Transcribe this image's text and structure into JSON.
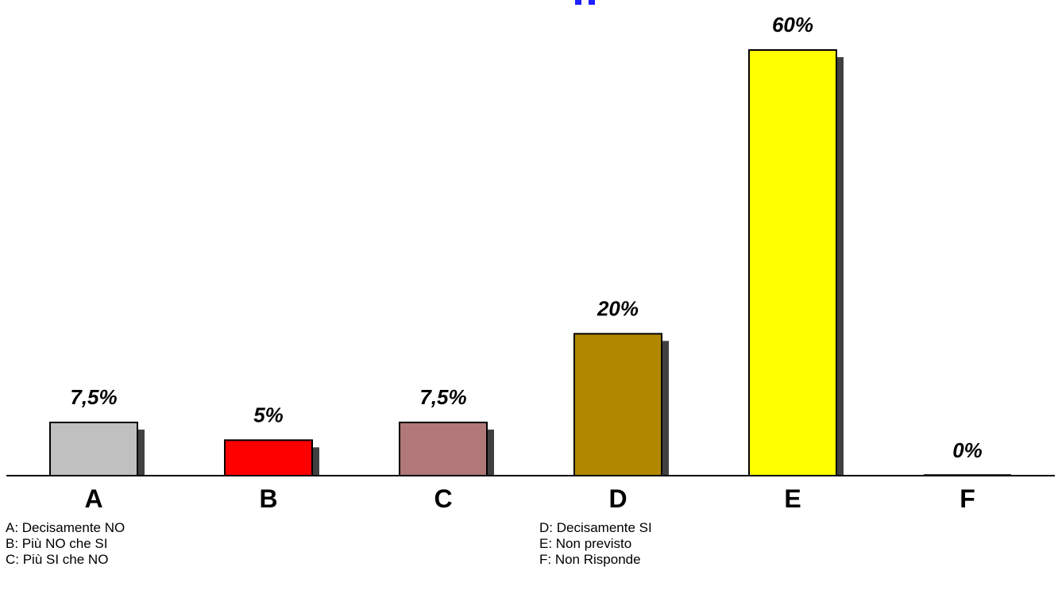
{
  "chart_data": {
    "type": "bar",
    "categories": [
      "A",
      "B",
      "C",
      "D",
      "E",
      "F"
    ],
    "values": [
      7.5,
      5,
      7.5,
      20,
      60,
      0
    ],
    "value_labels": [
      "7,5%",
      "5%",
      "7,5%",
      "20%",
      "60%",
      "0%"
    ],
    "colors": [
      "#c0c0c0",
      "#ff0000",
      "#b07878",
      "#b08800",
      "#ffff00",
      "#ffffff"
    ],
    "shadow_color": "#404040",
    "title": "",
    "title_color": "#1f1fff",
    "xlabel": "",
    "ylabel": "",
    "ylim": [
      0,
      60
    ],
    "grid": false,
    "legend": "bottom",
    "legend_entries": [
      "A: Decisamente NO",
      "B: Più NO che SI",
      "C: Più SI che NO",
      "D: Decisamente SI",
      "E: Non previsto",
      "F: Non Risponde"
    ]
  }
}
